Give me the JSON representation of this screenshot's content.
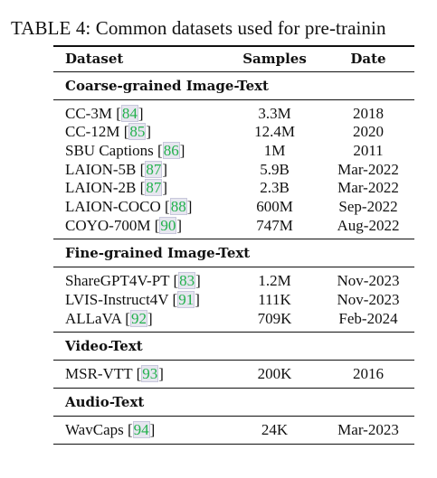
{
  "caption": "TABLE 4: Common datasets used for pre-trainin",
  "columns": {
    "dataset": "Dataset",
    "samples": "Samples",
    "date": "Date"
  },
  "sections": [
    {
      "title": "Coarse-grained Image-Text",
      "rows": [
        {
          "name": "CC-3M",
          "cite": "84",
          "samples": "3.3M",
          "date": "2018"
        },
        {
          "name": "CC-12M",
          "cite": "85",
          "samples": "12.4M",
          "date": "2020"
        },
        {
          "name": "SBU Captions",
          "cite": "86",
          "samples": "1M",
          "date": "2011"
        },
        {
          "name": "LAION-5B",
          "cite": "87",
          "samples": "5.9B",
          "date": "Mar-2022"
        },
        {
          "name": "LAION-2B",
          "cite": "87",
          "samples": "2.3B",
          "date": "Mar-2022"
        },
        {
          "name": "LAION-COCO",
          "cite": "88",
          "samples": "600M",
          "date": "Sep-2022"
        },
        {
          "name": "COYO-700M",
          "cite": "90",
          "samples": "747M",
          "date": "Aug-2022"
        }
      ]
    },
    {
      "title": "Fine-grained Image-Text",
      "rows": [
        {
          "name": "ShareGPT4V-PT",
          "cite": "83",
          "samples": "1.2M",
          "date": "Nov-2023"
        },
        {
          "name": "LVIS-Instruct4V",
          "cite": "91",
          "samples": "111K",
          "date": "Nov-2023"
        },
        {
          "name": "ALLaVA",
          "cite": "92",
          "samples": "709K",
          "date": "Feb-2024"
        }
      ]
    },
    {
      "title": "Video-Text",
      "rows": [
        {
          "name": "MSR-VTT",
          "cite": "93",
          "samples": "200K",
          "date": "2016"
        }
      ]
    },
    {
      "title": "Audio-Text",
      "rows": [
        {
          "name": "WavCaps",
          "cite": "94",
          "samples": "24K",
          "date": "Mar-2023"
        }
      ]
    }
  ]
}
